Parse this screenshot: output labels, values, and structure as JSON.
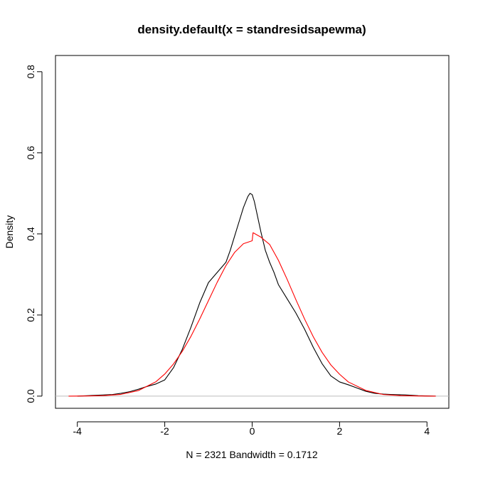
{
  "chart_data": {
    "type": "line",
    "title": "density.default(x = standresidsapewma)",
    "xlabel": "N = 2321   Bandwidth = 0.1712",
    "ylabel": "Density",
    "xlim": [
      -4.5,
      4.5
    ],
    "ylim": [
      -0.03,
      0.84
    ],
    "x_ticks": [
      -4,
      -2,
      0,
      2,
      4
    ],
    "x_tick_labels": [
      "-4",
      "-2",
      "0",
      "2",
      "4"
    ],
    "y_ticks": [
      0.0,
      0.2,
      0.4,
      0.6,
      0.8
    ],
    "y_tick_labels": [
      "0.0",
      "0.2",
      "0.4",
      "0.6",
      "0.8"
    ],
    "baseline": 0,
    "grid": false,
    "series": [
      {
        "color": "#000000",
        "x": [
          -4.0,
          -3.6,
          -3.2,
          -3.0,
          -2.8,
          -2.6,
          -2.4,
          -2.2,
          -2.0,
          -1.8,
          -1.6,
          -1.4,
          -1.2,
          -1.0,
          -0.8,
          -0.6,
          -0.5,
          -0.4,
          -0.3,
          -0.2,
          -0.1,
          -0.05,
          0.0,
          0.05,
          0.1,
          0.2,
          0.3,
          0.4,
          0.5,
          0.6,
          0.8,
          1.0,
          1.2,
          1.4,
          1.6,
          1.8,
          2.0,
          2.2,
          2.4,
          2.6,
          2.8,
          3.0,
          3.2,
          3.5,
          3.8,
          4.2
        ],
        "y": [
          0.0,
          0.002,
          0.004,
          0.007,
          0.011,
          0.017,
          0.024,
          0.03,
          0.04,
          0.07,
          0.115,
          0.17,
          0.23,
          0.28,
          0.305,
          0.33,
          0.36,
          0.395,
          0.43,
          0.465,
          0.492,
          0.5,
          0.497,
          0.48,
          0.455,
          0.405,
          0.36,
          0.33,
          0.305,
          0.275,
          0.24,
          0.205,
          0.165,
          0.12,
          0.08,
          0.05,
          0.035,
          0.028,
          0.02,
          0.012,
          0.007,
          0.005,
          0.004,
          0.003,
          0.001,
          0.0
        ]
      },
      {
        "color": "#ff0000",
        "x": [
          -4.2,
          -3.8,
          -3.4,
          -3.0,
          -2.6,
          -2.2,
          -2.0,
          -1.8,
          -1.6,
          -1.4,
          -1.2,
          -1.0,
          -0.8,
          -0.6,
          -0.4,
          -0.2,
          0.0,
          0.02,
          0.2,
          0.4,
          0.6,
          0.8,
          1.0,
          1.2,
          1.4,
          1.6,
          1.8,
          2.0,
          2.2,
          2.6,
          3.0,
          3.4,
          3.8,
          4.2
        ],
        "y": [
          0.0,
          0.0003,
          0.0012,
          0.0044,
          0.0138,
          0.0356,
          0.0545,
          0.0792,
          0.1102,
          0.1475,
          0.1901,
          0.2356,
          0.2808,
          0.3218,
          0.3546,
          0.3758,
          0.3831,
          0.403,
          0.392,
          0.374,
          0.335,
          0.288,
          0.238,
          0.19,
          0.146,
          0.108,
          0.077,
          0.054,
          0.035,
          0.014,
          0.004,
          0.0012,
          0.0003,
          0.0
        ]
      }
    ]
  }
}
